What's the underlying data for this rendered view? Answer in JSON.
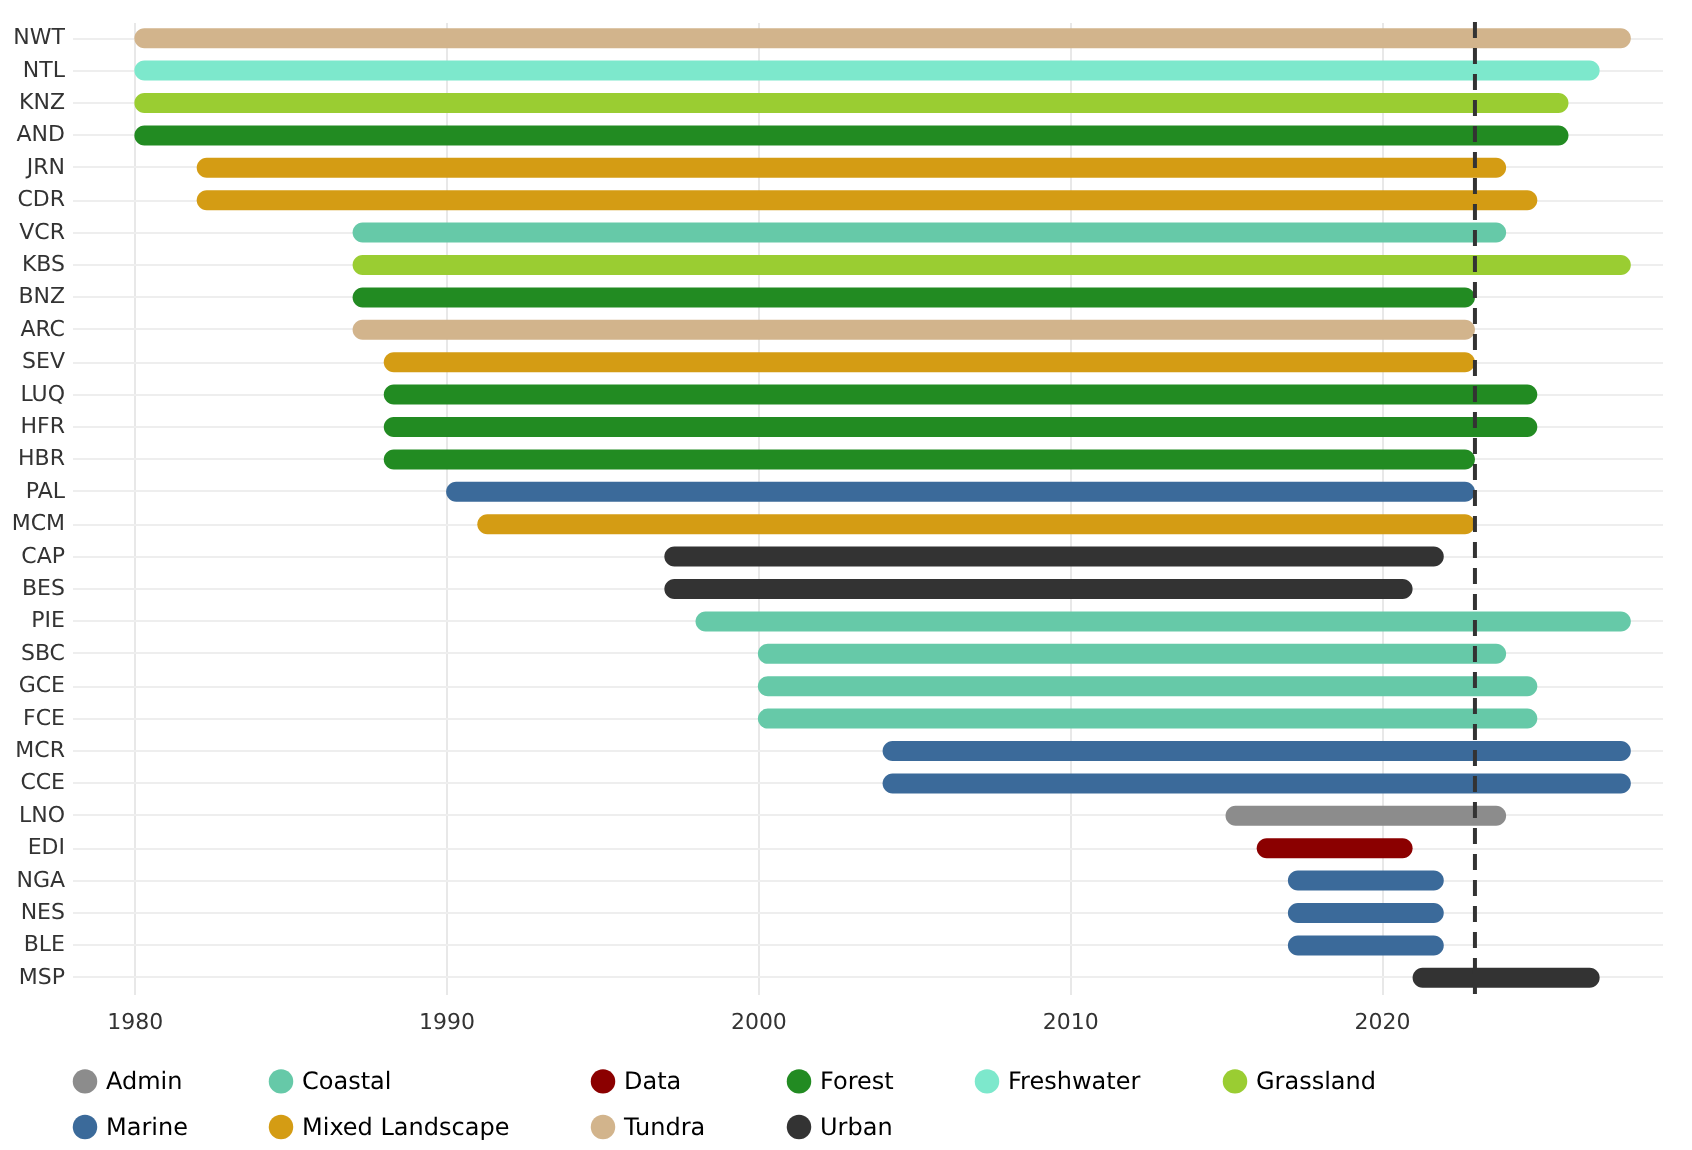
{
  "chart_data": {
    "type": "bar",
    "orientation": "horizontal",
    "categories": [
      "NWT",
      "NTL",
      "KNZ",
      "AND",
      "JRN",
      "CDR",
      "VCR",
      "KBS",
      "BNZ",
      "ARC",
      "SEV",
      "LUQ",
      "HFR",
      "HBR",
      "PAL",
      "MCM",
      "CAP",
      "BES",
      "PIE",
      "SBC",
      "GCE",
      "FCE",
      "MCR",
      "CCE",
      "LNO",
      "EDI",
      "NGA",
      "NES",
      "BLE",
      "MSP"
    ],
    "series": [
      {
        "name": "Admin",
        "color": "#8c8c8c",
        "base": [
          null,
          null,
          null,
          null,
          null,
          null,
          null,
          null,
          null,
          null,
          null,
          null,
          null,
          null,
          null,
          null,
          null,
          null,
          null,
          null,
          null,
          null,
          null,
          null,
          2015,
          null,
          null,
          null,
          null,
          null
        ],
        "values": [
          null,
          null,
          null,
          null,
          null,
          null,
          null,
          null,
          null,
          null,
          null,
          null,
          null,
          null,
          null,
          null,
          null,
          null,
          null,
          null,
          null,
          null,
          null,
          null,
          9,
          null,
          null,
          null,
          null,
          null
        ]
      },
      {
        "name": "Coastal",
        "color": "#66c9a8",
        "base": [
          null,
          null,
          null,
          null,
          null,
          null,
          1987,
          null,
          null,
          null,
          null,
          null,
          null,
          null,
          null,
          null,
          null,
          null,
          1998,
          2000,
          2000,
          2000,
          null,
          null,
          null,
          null,
          null,
          null,
          null,
          null
        ],
        "values": [
          null,
          null,
          null,
          null,
          null,
          null,
          37,
          null,
          null,
          null,
          null,
          null,
          null,
          null,
          null,
          null,
          null,
          null,
          30,
          24,
          25,
          25,
          null,
          null,
          null,
          null,
          null,
          null,
          null,
          null
        ]
      },
      {
        "name": "Data",
        "color": "#8b0000",
        "base": [
          null,
          null,
          null,
          null,
          null,
          null,
          null,
          null,
          null,
          null,
          null,
          null,
          null,
          null,
          null,
          null,
          null,
          null,
          null,
          null,
          null,
          null,
          null,
          null,
          null,
          2016,
          null,
          null,
          null,
          null
        ],
        "values": [
          null,
          null,
          null,
          null,
          null,
          null,
          null,
          null,
          null,
          null,
          null,
          null,
          null,
          null,
          null,
          null,
          null,
          null,
          null,
          null,
          null,
          null,
          null,
          null,
          null,
          5,
          null,
          null,
          null,
          null
        ]
      },
      {
        "name": "Forest",
        "color": "#228b22",
        "base": [
          null,
          null,
          null,
          1980,
          null,
          null,
          null,
          null,
          1987,
          null,
          null,
          1988,
          1988,
          1988,
          null,
          null,
          null,
          null,
          null,
          null,
          null,
          null,
          null,
          null,
          null,
          null,
          null,
          null,
          null,
          null
        ],
        "values": [
          null,
          null,
          null,
          46,
          null,
          null,
          null,
          null,
          36,
          null,
          null,
          37,
          37,
          35,
          null,
          null,
          null,
          null,
          null,
          null,
          null,
          null,
          null,
          null,
          null,
          null,
          null,
          null,
          null,
          null
        ]
      },
      {
        "name": "Freshwater",
        "color": "#7de8cc",
        "base": [
          null,
          1980,
          null,
          null,
          null,
          null,
          null,
          null,
          null,
          null,
          null,
          null,
          null,
          null,
          null,
          null,
          null,
          null,
          null,
          null,
          null,
          null,
          null,
          null,
          null,
          null,
          null,
          null,
          null,
          null
        ],
        "values": [
          null,
          47,
          null,
          null,
          null,
          null,
          null,
          null,
          null,
          null,
          null,
          null,
          null,
          null,
          null,
          null,
          null,
          null,
          null,
          null,
          null,
          null,
          null,
          null,
          null,
          null,
          null,
          null,
          null,
          null
        ]
      },
      {
        "name": "Grassland",
        "color": "#9acd32",
        "base": [
          null,
          null,
          1980,
          null,
          null,
          null,
          null,
          1987,
          null,
          null,
          null,
          null,
          null,
          null,
          null,
          null,
          null,
          null,
          null,
          null,
          null,
          null,
          null,
          null,
          null,
          null,
          null,
          null,
          null,
          null
        ],
        "values": [
          null,
          null,
          46,
          null,
          null,
          null,
          null,
          41,
          null,
          null,
          null,
          null,
          null,
          null,
          null,
          null,
          null,
          null,
          null,
          null,
          null,
          null,
          null,
          null,
          null,
          null,
          null,
          null,
          null,
          null
        ]
      },
      {
        "name": "Marine",
        "color": "#3b6a9a",
        "base": [
          null,
          null,
          null,
          null,
          null,
          null,
          null,
          null,
          null,
          null,
          null,
          null,
          null,
          null,
          1990,
          null,
          null,
          null,
          null,
          null,
          null,
          null,
          2004,
          2004,
          null,
          null,
          2017,
          2017,
          2017,
          null
        ],
        "values": [
          null,
          null,
          null,
          null,
          null,
          null,
          null,
          null,
          null,
          null,
          null,
          null,
          null,
          null,
          33,
          null,
          null,
          null,
          null,
          null,
          null,
          null,
          24,
          24,
          null,
          null,
          5,
          5,
          5,
          null
        ]
      },
      {
        "name": "Mixed Landscape",
        "color": "#d49c14",
        "base": [
          null,
          null,
          null,
          null,
          1982,
          1982,
          null,
          null,
          null,
          null,
          1988,
          null,
          null,
          null,
          null,
          1991,
          null,
          null,
          null,
          null,
          null,
          null,
          null,
          null,
          null,
          null,
          null,
          null,
          null,
          null
        ],
        "values": [
          null,
          null,
          null,
          null,
          42,
          43,
          null,
          null,
          null,
          null,
          35,
          null,
          null,
          null,
          null,
          32,
          null,
          null,
          null,
          null,
          null,
          null,
          null,
          null,
          null,
          null,
          null,
          null,
          null,
          null
        ]
      },
      {
        "name": "Tundra",
        "color": "#d2b48c",
        "base": [
          1980,
          null,
          null,
          null,
          null,
          null,
          null,
          null,
          null,
          1987,
          null,
          null,
          null,
          null,
          null,
          null,
          null,
          null,
          null,
          null,
          null,
          null,
          null,
          null,
          null,
          null,
          null,
          null,
          null,
          null
        ],
        "values": [
          48,
          null,
          null,
          null,
          null,
          null,
          null,
          null,
          null,
          36,
          null,
          null,
          null,
          null,
          null,
          null,
          null,
          null,
          null,
          null,
          null,
          null,
          null,
          null,
          null,
          null,
          null,
          null,
          null,
          null
        ]
      },
      {
        "name": "Urban",
        "color": "#333333",
        "base": [
          null,
          null,
          null,
          null,
          null,
          null,
          null,
          null,
          null,
          null,
          null,
          null,
          null,
          null,
          null,
          null,
          1997,
          1997,
          null,
          null,
          null,
          null,
          null,
          null,
          null,
          null,
          null,
          null,
          null,
          2021
        ],
        "values": [
          null,
          null,
          null,
          null,
          null,
          null,
          null,
          null,
          null,
          null,
          null,
          null,
          null,
          null,
          null,
          null,
          25,
          24,
          null,
          null,
          null,
          null,
          null,
          null,
          null,
          null,
          null,
          null,
          null,
          6
        ]
      }
    ],
    "xlim": [
      1978,
      2029
    ],
    "xticks": [
      1980,
      1990,
      2000,
      2010,
      2020
    ],
    "ref_lines": [
      {
        "axis": "x",
        "value": 2023,
        "color": "#333333",
        "line_style": "dashed"
      }
    ],
    "grid": true,
    "legend": "bottom"
  }
}
